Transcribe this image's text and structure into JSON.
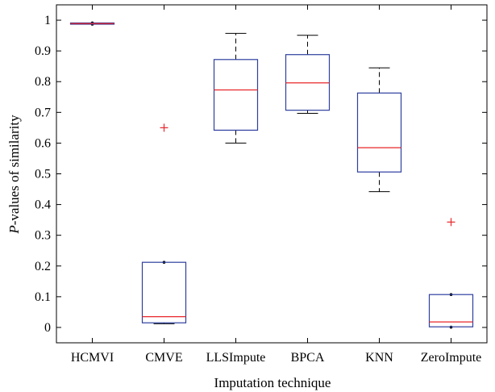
{
  "chart_data": {
    "type": "box",
    "title": "",
    "xlabel": "Imputation technique",
    "ylabel": {
      "prefix": "P",
      "rest": "-values of similarity"
    },
    "ylim": [
      -0.05,
      1.05
    ],
    "yticks": [
      "0",
      "0.1",
      "0.2",
      "0.3",
      "0.4",
      "0.5",
      "0.6",
      "0.7",
      "0.8",
      "0.9",
      "1"
    ],
    "grid": false,
    "legend": "none",
    "colors": {
      "box": "#2e3f9e",
      "median": "#e8262a",
      "whisker": "#000000",
      "outlier": "#e8262a"
    },
    "categories": [
      "HCMVI",
      "CMVE",
      "LLSImpute",
      "BPCA",
      "KNN",
      "ZeroImpute"
    ],
    "boxes": [
      {
        "name": "HCMVI",
        "q1": 0.987,
        "median": 0.989,
        "q3": 0.991,
        "whisker_low": 0.987,
        "whisker_high": 0.991,
        "outliers": []
      },
      {
        "name": "CMVE",
        "q1": 0.015,
        "median": 0.035,
        "q3": 0.212,
        "whisker_low": 0.012,
        "whisker_high": 0.212,
        "outliers": [
          0.65
        ]
      },
      {
        "name": "LLSImpute",
        "q1": 0.642,
        "median": 0.773,
        "q3": 0.872,
        "whisker_low": 0.6,
        "whisker_high": 0.957,
        "outliers": []
      },
      {
        "name": "BPCA",
        "q1": 0.707,
        "median": 0.796,
        "q3": 0.888,
        "whisker_low": 0.697,
        "whisker_high": 0.951,
        "outliers": []
      },
      {
        "name": "KNN",
        "q1": 0.506,
        "median": 0.585,
        "q3": 0.763,
        "whisker_low": 0.442,
        "whisker_high": 0.845,
        "outliers": []
      },
      {
        "name": "ZeroImpute",
        "q1": 0.002,
        "median": 0.018,
        "q3": 0.107,
        "whisker_low": 0.001,
        "whisker_high": 0.107,
        "outliers": [
          0.343
        ]
      }
    ]
  }
}
